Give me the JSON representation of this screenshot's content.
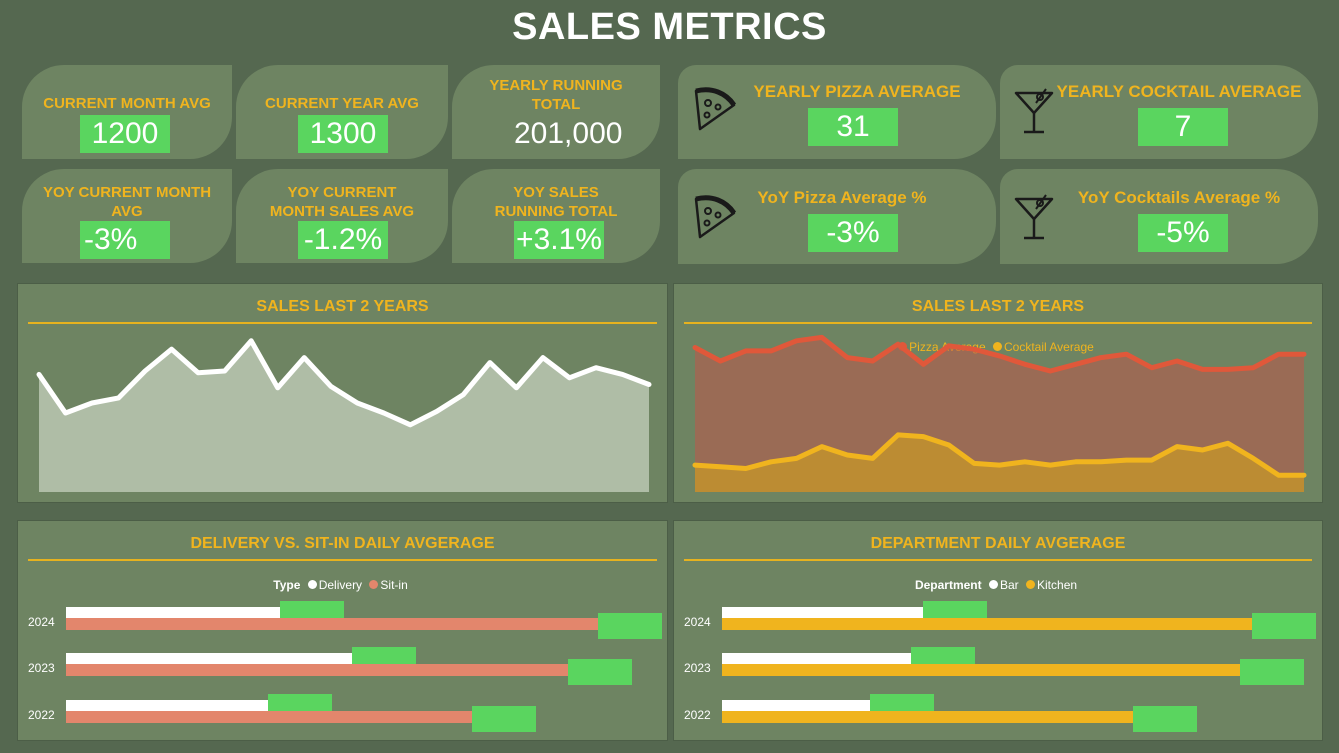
{
  "title": "SALES METRICS",
  "kpis": {
    "current_month_avg": {
      "label": "CURRENT MONTH AVG",
      "value": "1200"
    },
    "current_year_avg": {
      "label": "CURRENT YEAR AVG",
      "value": "1300"
    },
    "yearly_running_total": {
      "label": "YEARLY RUNNING TOTAL",
      "value": "201,000"
    },
    "yoy_current_month_avg": {
      "label": "YOY CURRENT MONTH AVG",
      "value": "-3%"
    },
    "yoy_current_month_sales_avg": {
      "label": "YOY CURRENT MONTH SALES AVG",
      "value": "-1.2%"
    },
    "yoy_sales_running_total": {
      "label": "YOY SALES RUNNING TOTAL",
      "value": "+3.1%"
    },
    "yearly_pizza_average": {
      "label": "YEARLY PIZZA AVERAGE",
      "value": "31",
      "icon": "pizza-icon"
    },
    "yearly_cocktail_average": {
      "label": "YEARLY COCKTAIL AVERAGE",
      "value": "7",
      "icon": "cocktail-icon"
    },
    "yoy_pizza_average": {
      "label": "YoY Pizza Average %",
      "value": "-3%",
      "icon": "pizza-icon"
    },
    "yoy_cocktails_average": {
      "label": "YoY Cocktails Average %",
      "value": "-5%",
      "icon": "cocktail-icon"
    }
  },
  "colors": {
    "background": "#556850",
    "card": "#6e8462",
    "accent": "#f0b41e",
    "value_box": "#5ad55f",
    "pizza": "#e0583a",
    "cocktail": "#f0b41e",
    "delivery": "#ffffff",
    "sit_in": "#e3866c",
    "bar": "#ffffff",
    "kitchen": "#f0b41e"
  },
  "chart_data": [
    {
      "type": "area",
      "title": "SALES LAST 2 YEARS",
      "x": [
        1,
        2,
        3,
        4,
        5,
        6,
        7,
        8,
        9,
        10,
        11,
        12,
        13,
        14,
        15,
        16,
        17,
        18,
        19,
        20,
        21,
        22,
        23,
        24
      ],
      "values": [
        70,
        47,
        53,
        56,
        72,
        85,
        71,
        72,
        90,
        62,
        80,
        63,
        53,
        47,
        40,
        48,
        58,
        77,
        62,
        80,
        68,
        74,
        70,
        64
      ],
      "ylim": [
        0,
        100
      ],
      "legend": false
    },
    {
      "type": "area",
      "title": "SALES LAST 2 YEARS",
      "x": [
        1,
        2,
        3,
        4,
        5,
        6,
        7,
        8,
        9,
        10,
        11,
        12,
        13,
        14,
        15,
        16,
        17,
        18,
        19,
        20,
        21,
        22,
        23,
        24,
        25
      ],
      "series": [
        {
          "name": "Pizza Average",
          "values": [
            86,
            78,
            84,
            84,
            90,
            92,
            80,
            78,
            88,
            76,
            87,
            85,
            81,
            76,
            72,
            76,
            80,
            82,
            74,
            78,
            73,
            73,
            74,
            82,
            82
          ]
        },
        {
          "name": "Cocktail Average",
          "values": [
            16,
            15,
            14,
            18,
            20,
            27,
            22,
            20,
            34,
            33,
            28,
            17,
            16,
            18,
            16,
            18,
            18,
            19,
            19,
            27,
            25,
            29,
            20,
            10,
            10
          ]
        }
      ],
      "ylim": [
        0,
        100
      ],
      "legend": "top-center"
    },
    {
      "type": "bar",
      "orientation": "horizontal",
      "title": "DELIVERY VS. SIT-IN DAILY AVGERAGE",
      "legend_title": "Type",
      "categories": [
        "2024",
        "2023",
        "2022"
      ],
      "series": [
        {
          "name": "Delivery",
          "values": [
            36,
            48,
            34
          ]
        },
        {
          "name": "Sit-in",
          "values": [
            89,
            84,
            68
          ]
        }
      ],
      "xlim": [
        0,
        100
      ]
    },
    {
      "type": "bar",
      "orientation": "horizontal",
      "title": "DEPARTMENT DAILY AVGERAGE",
      "legend_title": "Department",
      "categories": [
        "2024",
        "2023",
        "2022"
      ],
      "series": [
        {
          "name": "Bar",
          "values": [
            34,
            32,
            25
          ]
        },
        {
          "name": "Kitchen",
          "values": [
            89,
            87,
            69
          ]
        }
      ],
      "xlim": [
        0,
        100
      ]
    }
  ]
}
